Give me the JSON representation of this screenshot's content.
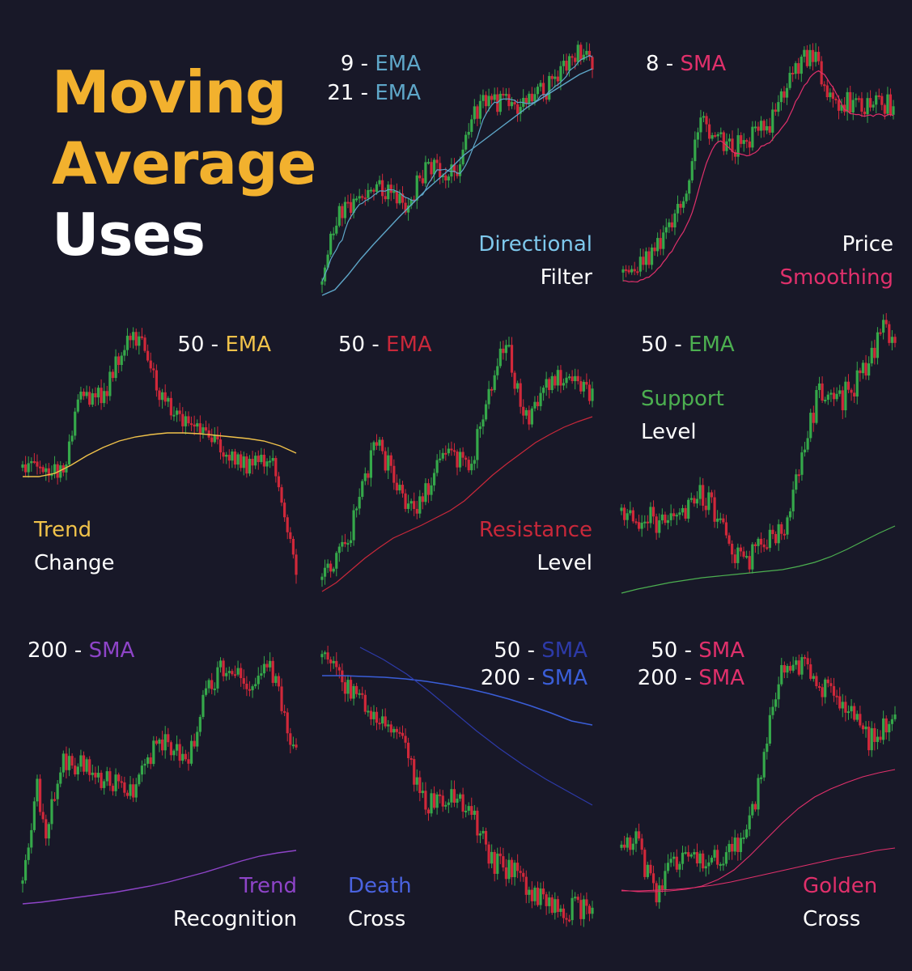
{
  "title": {
    "line1": "Moving",
    "line2": "Average",
    "line3": "Uses"
  },
  "colors": {
    "background": "#181828",
    "title_accent": "#f2b12e",
    "candle_up": "#35a84a",
    "candle_down": "#d0283a"
  },
  "panels": [
    {
      "id": "directional-filter",
      "ma_labels": [
        {
          "period": "9",
          "sep": " - ",
          "type": "EMA",
          "color": "#5ea6c8"
        },
        {
          "period": "21",
          "sep": " - ",
          "type": "EMA",
          "color": "#5ea6c8"
        }
      ],
      "caption": [
        {
          "text": "Directional",
          "color": "#7ec8ec"
        },
        {
          "text": "Filter",
          "color": "#ffffff"
        }
      ]
    },
    {
      "id": "price-smoothing",
      "ma_labels": [
        {
          "period": "8",
          "sep": " - ",
          "type": "SMA",
          "color": "#e0306b"
        }
      ],
      "caption": [
        {
          "text": "Price",
          "color": "#ffffff"
        },
        {
          "text": "Smoothing",
          "color": "#e0306b"
        }
      ]
    },
    {
      "id": "trend-change",
      "ma_labels": [
        {
          "period": "50",
          "sep": " - ",
          "type": "EMA",
          "color": "#f0c24a"
        }
      ],
      "caption": [
        {
          "text": "Trend",
          "color": "#f0c24a"
        },
        {
          "text": "Change",
          "color": "#ffffff"
        }
      ]
    },
    {
      "id": "resistance-level",
      "ma_labels": [
        {
          "period": "50",
          "sep": " - ",
          "type": "EMA",
          "color": "#c8283a"
        }
      ],
      "caption": [
        {
          "text": "Resistance",
          "color": "#c8283a"
        },
        {
          "text": "Level",
          "color": "#ffffff"
        }
      ]
    },
    {
      "id": "support-level",
      "ma_labels": [
        {
          "period": "50",
          "sep": " - ",
          "type": "EMA",
          "color": "#4caf50"
        }
      ],
      "caption": [
        {
          "text": "Support",
          "color": "#4caf50"
        },
        {
          "text": "Level",
          "color": "#ffffff"
        }
      ]
    },
    {
      "id": "trend-recognition",
      "ma_labels": [
        {
          "period": "200",
          "sep": " - ",
          "type": "SMA",
          "color": "#8e44c8"
        }
      ],
      "caption": [
        {
          "text": "Trend",
          "color": "#8e44c8"
        },
        {
          "text": "Recognition",
          "color": "#ffffff"
        }
      ]
    },
    {
      "id": "death-cross",
      "ma_labels": [
        {
          "period": "50",
          "sep": " - ",
          "type": "SMA",
          "color": "#2d3aa8"
        },
        {
          "period": "200",
          "sep": " - ",
          "type": "SMA",
          "color": "#3a5ed8"
        }
      ],
      "caption": [
        {
          "text": "Death",
          "color": "#4a63e0"
        },
        {
          "text": "Cross",
          "color": "#ffffff"
        }
      ]
    },
    {
      "id": "golden-cross",
      "ma_labels": [
        {
          "period": "50",
          "sep": " - ",
          "type": "SMA",
          "color": "#e0306b"
        },
        {
          "period": "200",
          "sep": " - ",
          "type": "SMA",
          "color": "#e0306b"
        }
      ],
      "caption": [
        {
          "text": "Golden",
          "color": "#e0306b"
        },
        {
          "text": "Cross",
          "color": "#ffffff"
        }
      ]
    }
  ],
  "chart_data": [
    {
      "type": "candlestick",
      "panel": "directional-filter",
      "shape": "rising",
      "series": [
        {
          "type": "EMA",
          "period": 9,
          "color": "#5ea6c8"
        },
        {
          "type": "EMA",
          "period": 21,
          "color": "#5ea6c8"
        }
      ]
    },
    {
      "type": "candlestick",
      "panel": "price-smoothing",
      "shape": "rise-then-drop",
      "series": [
        {
          "type": "SMA",
          "period": 8,
          "color": "#e0306b"
        }
      ]
    },
    {
      "type": "candlestick",
      "panel": "trend-change",
      "shape": "rally-then-decline",
      "series": [
        {
          "type": "EMA",
          "period": 50,
          "color": "#f0c24a"
        }
      ]
    },
    {
      "type": "candlestick",
      "panel": "resistance-level",
      "shape": "rising",
      "series": [
        {
          "type": "EMA",
          "period": 50,
          "color": "#c8283a"
        }
      ]
    },
    {
      "type": "candlestick",
      "panel": "support-level",
      "shape": "range-then-breakout",
      "series": [
        {
          "type": "EMA",
          "period": 50,
          "color": "#4caf50"
        }
      ]
    },
    {
      "type": "candlestick",
      "panel": "trend-recognition",
      "shape": "rising",
      "series": [
        {
          "type": "SMA",
          "period": 200,
          "color": "#8e44c8"
        }
      ]
    },
    {
      "type": "candlestick",
      "panel": "death-cross",
      "shape": "falling",
      "series": [
        {
          "type": "SMA",
          "period": 50,
          "color": "#2d3aa8"
        },
        {
          "type": "SMA",
          "period": 200,
          "color": "#3a5ed8"
        }
      ]
    },
    {
      "type": "candlestick",
      "panel": "golden-cross",
      "shape": "falling-then-rising",
      "series": [
        {
          "type": "SMA",
          "period": 50,
          "color": "#e0306b"
        },
        {
          "type": "SMA",
          "period": 200,
          "color": "#e0306b"
        }
      ]
    }
  ]
}
